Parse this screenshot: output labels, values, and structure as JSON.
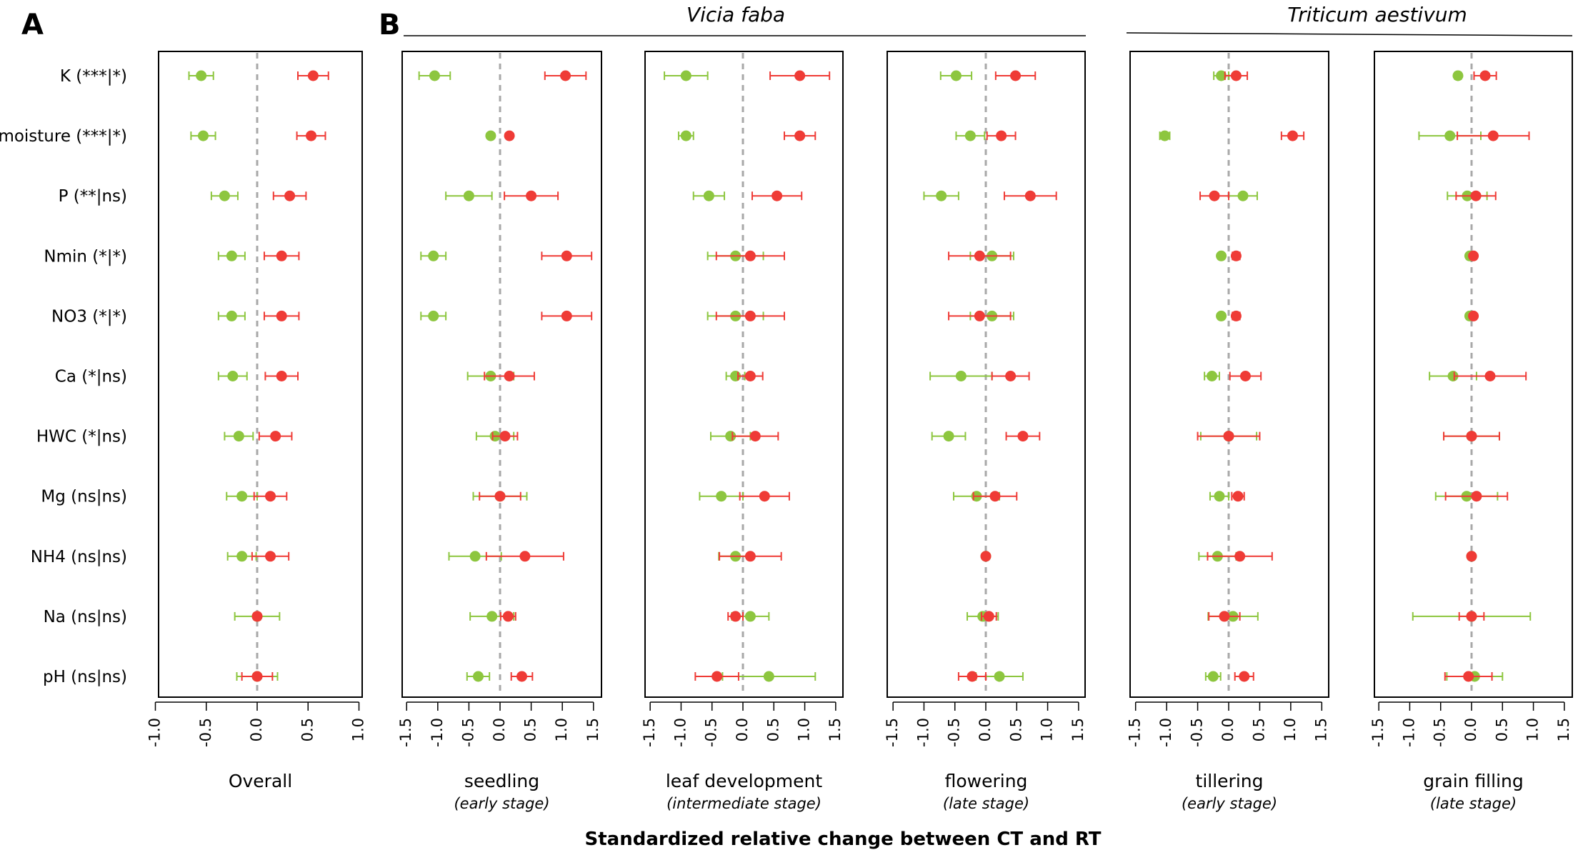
{
  "chart_data": {
    "type": "forest",
    "title": "Standardized relative change between CT and RT",
    "xlabel": "Standardized relative change between CT and RT",
    "panel_letters": [
      "A",
      "B"
    ],
    "species": [
      "Vicia faba",
      "Triticum aestivum"
    ],
    "series_colors": {
      "green": "#8dc63f",
      "red": "#ef3b36"
    },
    "rows": [
      "K  (***|*)",
      "moisture  (***|*)",
      "P  (**|ns)",
      "Nmin  (*|*)",
      "NO3  (*|*)",
      "Ca  (*|ns)",
      "HWC  (*|ns)",
      "Mg  (ns|ns)",
      "NH4  (ns|ns)",
      "Na  (ns|ns)",
      "pH  (ns|ns)"
    ],
    "panels": [
      {
        "label": "Overall",
        "sublabel": "",
        "xlim": [
          -1.0,
          1.0
        ],
        "ticks": [
          "-1.0",
          "-0.5",
          "0.0",
          "0.5",
          "1.0"
        ],
        "tick_values": [
          -1.0,
          -0.5,
          0.0,
          0.5,
          1.0
        ],
        "green": [
          [
            -0.55,
            0.12
          ],
          [
            -0.53,
            0.12
          ],
          [
            -0.32,
            0.13
          ],
          [
            -0.25,
            0.13
          ],
          [
            -0.25,
            0.13
          ],
          [
            -0.24,
            0.14
          ],
          [
            -0.18,
            0.14
          ],
          [
            -0.15,
            0.15
          ],
          [
            -0.15,
            0.14
          ],
          [
            0.0,
            0.22
          ],
          [
            0.0,
            0.2
          ]
        ],
        "red": [
          [
            0.55,
            0.15
          ],
          [
            0.53,
            0.14
          ],
          [
            0.32,
            0.16
          ],
          [
            0.24,
            0.17
          ],
          [
            0.24,
            0.17
          ],
          [
            0.24,
            0.16
          ],
          [
            0.18,
            0.16
          ],
          [
            0.13,
            0.16
          ],
          [
            0.13,
            0.18
          ],
          [
            0.0,
            0.03
          ],
          [
            0.0,
            0.15
          ]
        ]
      },
      {
        "label": "seedling",
        "sublabel": "(early stage)",
        "xlim": [
          -1.6,
          1.6
        ],
        "ticks": [
          "-1.5",
          "-1.0",
          "-0.5",
          "0.0",
          "0.5",
          "1.0",
          "1.5"
        ],
        "tick_values": [
          -1.5,
          -1.0,
          -0.5,
          0.0,
          0.5,
          1.0,
          1.5
        ],
        "green": [
          [
            -1.05,
            0.25
          ],
          [
            -0.15,
            0.03
          ],
          [
            -0.5,
            0.37
          ],
          [
            -1.07,
            0.2
          ],
          [
            -1.07,
            0.2
          ],
          [
            -0.15,
            0.37
          ],
          [
            -0.08,
            0.3
          ],
          [
            0.0,
            0.43
          ],
          [
            -0.4,
            0.42
          ],
          [
            -0.13,
            0.35
          ],
          [
            -0.35,
            0.18
          ]
        ],
        "red": [
          [
            1.05,
            0.33
          ],
          [
            0.15,
            0.03
          ],
          [
            0.5,
            0.43
          ],
          [
            1.07,
            0.4
          ],
          [
            1.07,
            0.4
          ],
          [
            0.15,
            0.4
          ],
          [
            0.08,
            0.2
          ],
          [
            0.0,
            0.33
          ],
          [
            0.4,
            0.62
          ],
          [
            0.13,
            0.12
          ],
          [
            0.35,
            0.17
          ]
        ]
      },
      {
        "label": "leaf development",
        "sublabel": "(intermediate stage)",
        "xlim": [
          -1.6,
          1.6
        ],
        "ticks": [
          "-1.5",
          "-1.0",
          "-0.5",
          "0.0",
          "0.5",
          "1.0",
          "1.5"
        ],
        "tick_values": [
          -1.5,
          -1.0,
          -0.5,
          0.0,
          0.5,
          1.0,
          1.5
        ],
        "green": [
          [
            -0.92,
            0.35
          ],
          [
            -0.92,
            0.12
          ],
          [
            -0.55,
            0.25
          ],
          [
            -0.12,
            0.45
          ],
          [
            -0.12,
            0.45
          ],
          [
            -0.12,
            0.15
          ],
          [
            -0.2,
            0.32
          ],
          [
            -0.35,
            0.35
          ],
          [
            -0.12,
            0.27
          ],
          [
            0.12,
            0.3
          ],
          [
            0.42,
            0.75
          ]
        ],
        "red": [
          [
            0.92,
            0.48
          ],
          [
            0.92,
            0.25
          ],
          [
            0.55,
            0.4
          ],
          [
            0.12,
            0.55
          ],
          [
            0.12,
            0.55
          ],
          [
            0.12,
            0.2
          ],
          [
            0.2,
            0.37
          ],
          [
            0.35,
            0.4
          ],
          [
            0.12,
            0.5
          ],
          [
            -0.12,
            0.12
          ],
          [
            -0.42,
            0.35
          ]
        ]
      },
      {
        "label": "flowering",
        "sublabel": "(late stage)",
        "xlim": [
          -1.6,
          1.6
        ],
        "ticks": [
          "-1.5",
          "-1.0",
          "-0.5",
          "0.0",
          "0.5",
          "1.0",
          "1.5"
        ],
        "tick_values": [
          -1.5,
          -1.0,
          -0.5,
          0.0,
          0.5,
          1.0,
          1.5
        ],
        "green": [
          [
            -0.48,
            0.25
          ],
          [
            -0.25,
            0.23
          ],
          [
            -0.72,
            0.28
          ],
          [
            0.1,
            0.35
          ],
          [
            0.1,
            0.35
          ],
          [
            -0.4,
            0.5
          ],
          [
            -0.6,
            0.27
          ],
          [
            -0.15,
            0.37
          ],
          [
            0.0,
            0.04
          ],
          [
            -0.05,
            0.25
          ],
          [
            0.22,
            0.38
          ]
        ],
        "red": [
          [
            0.48,
            0.32
          ],
          [
            0.25,
            0.23
          ],
          [
            0.72,
            0.42
          ],
          [
            -0.1,
            0.5
          ],
          [
            -0.1,
            0.5
          ],
          [
            0.4,
            0.3
          ],
          [
            0.6,
            0.27
          ],
          [
            0.15,
            0.35
          ],
          [
            0.0,
            0.04
          ],
          [
            0.05,
            0.12
          ],
          [
            -0.22,
            0.22
          ]
        ]
      },
      {
        "label": "tillering",
        "sublabel": "(early stage)",
        "xlim": [
          -1.6,
          1.6
        ],
        "ticks": [
          "-1.5",
          "-1.0",
          "-0.5",
          "0.0",
          "0.5",
          "1.0",
          "1.5"
        ],
        "tick_values": [
          -1.5,
          -1.0,
          -0.5,
          0.0,
          0.5,
          1.0,
          1.5
        ],
        "green": [
          [
            -0.12,
            0.12
          ],
          [
            -1.03,
            0.08
          ],
          [
            0.23,
            0.23
          ],
          [
            -0.12,
            0.04
          ],
          [
            -0.12,
            0.04
          ],
          [
            -0.27,
            0.12
          ],
          [
            0.0,
            0.45
          ],
          [
            -0.15,
            0.15
          ],
          [
            -0.18,
            0.3
          ],
          [
            0.07,
            0.4
          ],
          [
            -0.25,
            0.12
          ]
        ],
        "red": [
          [
            0.12,
            0.18
          ],
          [
            1.03,
            0.18
          ],
          [
            -0.23,
            0.23
          ],
          [
            0.12,
            0.06
          ],
          [
            0.12,
            0.06
          ],
          [
            0.27,
            0.25
          ],
          [
            0.0,
            0.5
          ],
          [
            0.15,
            0.1
          ],
          [
            0.18,
            0.52
          ],
          [
            -0.07,
            0.25
          ],
          [
            0.25,
            0.15
          ]
        ]
      },
      {
        "label": "grain filling",
        "sublabel": "(late stage)",
        "xlim": [
          -1.6,
          1.6
        ],
        "ticks": [
          "-1.5",
          "-1.0",
          "-0.5",
          "0.0",
          "0.5",
          "1.0",
          "1.5"
        ],
        "tick_values": [
          -1.5,
          -1.0,
          -0.5,
          0.0,
          0.5,
          1.0,
          1.5
        ],
        "green": [
          [
            -0.22,
            0.05
          ],
          [
            -0.35,
            0.5
          ],
          [
            -0.07,
            0.32
          ],
          [
            -0.03,
            0.04
          ],
          [
            -0.03,
            0.04
          ],
          [
            -0.3,
            0.38
          ],
          [
            0.0,
            0.45
          ],
          [
            -0.08,
            0.5
          ],
          [
            0.0,
            0.04
          ],
          [
            0.0,
            0.95
          ],
          [
            0.05,
            0.45
          ]
        ],
        "red": [
          [
            0.22,
            0.18
          ],
          [
            0.35,
            0.58
          ],
          [
            0.07,
            0.32
          ],
          [
            0.03,
            0.04
          ],
          [
            0.03,
            0.04
          ],
          [
            0.3,
            0.58
          ],
          [
            0.0,
            0.45
          ],
          [
            0.08,
            0.5
          ],
          [
            0.0,
            0.04
          ],
          [
            0.0,
            0.2
          ],
          [
            -0.05,
            0.38
          ]
        ]
      }
    ]
  }
}
